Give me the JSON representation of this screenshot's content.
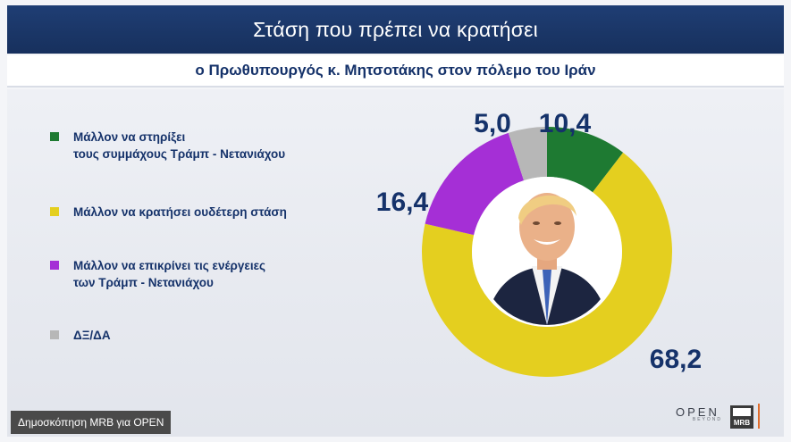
{
  "header": {
    "title": "Στάση που πρέπει να κρατήσει",
    "subtitle": "ο Πρωθυπουργός κ. Μητσοτάκης στον πόλεμο του Ιράν"
  },
  "chart_data": {
    "type": "pie",
    "variant": "donut",
    "title": "Στάση που πρέπει να κρατήσει",
    "subtitle": "ο Πρωθυπουργός κ. Μητσοτάκης στον πόλεμο του Ιράν",
    "categories": [
      "Μάλλον να στηρίξει\nτους συμμάχους Τράμπ - Νετανιάχου",
      "Μάλλον να κρατήσει ουδέτερη στάση",
      "Μάλλον να επικρίνει τις ενέργειες\nτων  Τράμπ - Νετανιάχου",
      "ΔΞ/ΔΑ"
    ],
    "values": [
      10.4,
      68.2,
      16.4,
      5.0
    ],
    "value_labels": [
      "10,4",
      "68,2",
      "16,4",
      "5,0"
    ],
    "colors": [
      "#1e7a32",
      "#e4cf1f",
      "#a52fd6",
      "#b7b7b7"
    ],
    "legend_position": "left"
  },
  "footer": {
    "credit": "Δημοσκόπηση MRB για OPEN",
    "logo_open": "OPEN",
    "logo_open_sub": "BEYOND",
    "logo_mrb": "MRB"
  }
}
